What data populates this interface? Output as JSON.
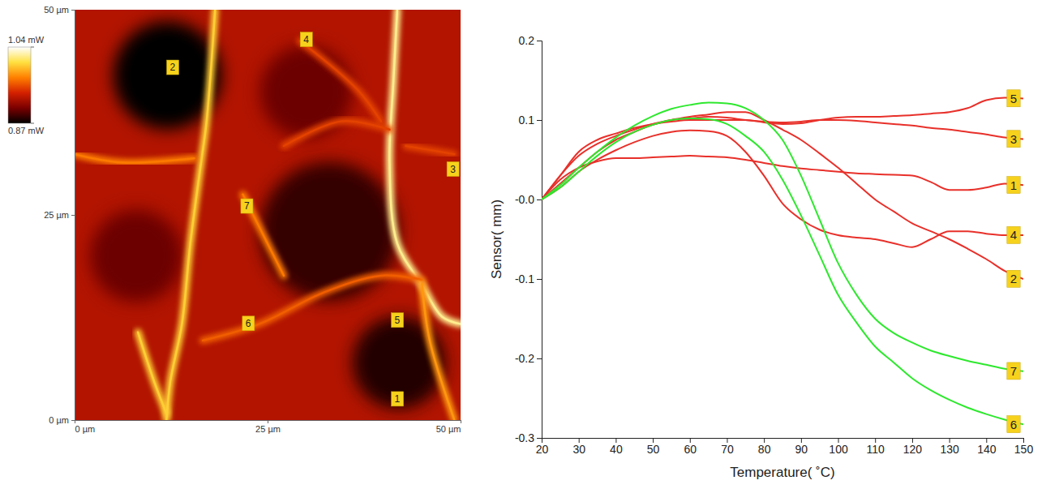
{
  "chart_data": [
    {
      "type": "map",
      "xlim": [
        0,
        50
      ],
      "ylim": [
        0,
        50
      ],
      "xticks": [
        {
          "value": 0,
          "label": "0 µm"
        },
        {
          "value": 25,
          "label": "25 µm"
        },
        {
          "value": 50,
          "label": "50 µm"
        }
      ],
      "yticks": [
        {
          "value": 0,
          "label": "0 µm"
        },
        {
          "value": 25,
          "label": "25 µm"
        },
        {
          "value": 50,
          "label": "50 µm"
        }
      ],
      "colorbar": {
        "range": [
          0.87,
          1.04
        ],
        "ticks": [
          {
            "value": 1.04,
            "label": "1.04 mW"
          },
          {
            "value": 0.87,
            "label": "0.87 mW"
          }
        ]
      },
      "background": 0.925,
      "dark_regions": [
        {
          "x": 12,
          "y": 42,
          "radius": 7,
          "power": 0.87
        },
        {
          "x": 33,
          "y": 23,
          "radius": 9,
          "power": 0.885
        },
        {
          "x": 42,
          "y": 7,
          "radius": 6,
          "power": 0.88
        },
        {
          "x": 8,
          "y": 20,
          "radius": 6,
          "power": 0.9
        },
        {
          "x": 30,
          "y": 40,
          "radius": 6,
          "power": 0.9
        }
      ],
      "ridges": [
        {
          "power": 1.0,
          "x": [
            18.2,
            17.1,
            16.4,
            15.0,
            13.9,
            12.4,
            11.9
          ],
          "y": [
            50,
            36.4,
            31.5,
            21.6,
            11.7,
            4.7,
            0
          ]
        },
        {
          "power": 1.02,
          "x": [
            41.8,
            41.3,
            40.8,
            41.8,
            44.9,
            47.6,
            50
          ],
          "y": [
            50,
            41.3,
            31.4,
            21.5,
            16.6,
            12.6,
            11.7
          ]
        },
        {
          "power": 1.0,
          "x": [
            8.2,
            10.3,
            11.9
          ],
          "y": [
            10.7,
            4.7,
            0.8
          ]
        },
        {
          "power": 0.97,
          "x": [
            0,
            6.1,
            15.5
          ],
          "y": [
            32.4,
            31.4,
            31.9
          ]
        },
        {
          "power": 0.97,
          "x": [
            21.8,
            25,
            27.1
          ],
          "y": [
            27.5,
            21.5,
            17.6
          ]
        },
        {
          "power": 0.96,
          "x": [
            16.6,
            23.9,
            32.4,
            39.7,
            45
          ],
          "y": [
            9.7,
            11.7,
            15.6,
            17.6,
            17.1
          ]
        },
        {
          "power": 0.98,
          "x": [
            45,
            46,
            49.2
          ],
          "y": [
            16.6,
            9.7,
            0
          ]
        },
        {
          "power": 0.95,
          "x": [
            29.2,
            36.6,
            39.7
          ],
          "y": [
            46.2,
            40.3,
            36.4
          ]
        },
        {
          "power": 0.95,
          "x": [
            27.1,
            34.5,
            40.8
          ],
          "y": [
            33.4,
            36.4,
            35.4
          ]
        },
        {
          "power": 0.95,
          "x": [
            42.9,
            49.2
          ],
          "y": [
            33.4,
            32.4
          ]
        }
      ],
      "points": {
        "labels": [
          "1",
          "2",
          "3",
          "4",
          "5",
          "6",
          "7"
        ],
        "x": [
          41.8,
          12.7,
          49.0,
          30.0,
          41.8,
          22.5,
          22.3
        ],
        "y": [
          2.6,
          43.0,
          30.6,
          46.4,
          12.2,
          11.8,
          26.1
        ]
      }
    },
    {
      "type": "line",
      "x_label": "Temperature( ˚C)",
      "y_label": "Sensor( mm)",
      "grid": false,
      "xlim": [
        20,
        150
      ],
      "xticks": [
        20,
        30,
        40,
        50,
        60,
        70,
        80,
        90,
        100,
        110,
        120,
        130,
        140,
        150
      ],
      "ylim": [
        -0.3,
        0.2
      ],
      "yticks": [
        -0.3,
        -0.2,
        -0.1,
        {
          "value": 0,
          "label": "-0.0"
        },
        0.1,
        0.2
      ],
      "x": [
        20,
        25,
        30,
        35,
        40,
        45,
        50,
        55,
        60,
        65,
        70,
        75,
        80,
        85,
        90,
        95,
        100,
        105,
        110,
        115,
        120,
        125,
        130,
        135,
        140,
        145,
        150
      ],
      "series": [
        {
          "name": "1",
          "color": "#e8302a",
          "values": [
            0,
            0.025,
            0.04,
            0.048,
            0.052,
            0.052,
            0.053,
            0.054,
            0.055,
            0.054,
            0.053,
            0.05,
            0.046,
            0.042,
            0.039,
            0.037,
            0.035,
            0.033,
            0.032,
            0.031,
            0.03,
            0.022,
            0.012,
            0.012,
            0.015,
            0.02,
            0.018
          ]
        },
        {
          "name": "2",
          "color": "#e8302a",
          "values": [
            0,
            0.02,
            0.04,
            0.06,
            0.075,
            0.085,
            0.094,
            0.1,
            0.104,
            0.107,
            0.11,
            0.11,
            0.1,
            0.088,
            0.075,
            0.058,
            0.04,
            0.02,
            0.0,
            -0.015,
            -0.03,
            -0.04,
            -0.05,
            -0.062,
            -0.075,
            -0.09,
            -0.1
          ]
        },
        {
          "name": "3",
          "color": "#e8302a",
          "values": [
            0,
            0.03,
            0.055,
            0.07,
            0.08,
            0.088,
            0.095,
            0.1,
            0.102,
            0.104,
            0.103,
            0.1,
            0.098,
            0.097,
            0.098,
            0.1,
            0.1,
            0.099,
            0.097,
            0.095,
            0.093,
            0.09,
            0.088,
            0.085,
            0.082,
            0.078,
            0.076
          ]
        },
        {
          "name": "4",
          "color": "#e8302a",
          "values": [
            0,
            0.015,
            0.035,
            0.05,
            0.062,
            0.072,
            0.08,
            0.085,
            0.087,
            0.086,
            0.08,
            0.06,
            0.03,
            -0.005,
            -0.025,
            -0.038,
            -0.045,
            -0.048,
            -0.05,
            -0.055,
            -0.06,
            -0.05,
            -0.04,
            -0.04,
            -0.043,
            -0.045,
            -0.045
          ]
        },
        {
          "name": "5",
          "color": "#e8302a",
          "values": [
            0,
            0.03,
            0.06,
            0.075,
            0.083,
            0.09,
            0.095,
            0.098,
            0.1,
            0.1,
            0.1,
            0.1,
            0.097,
            0.095,
            0.096,
            0.1,
            0.103,
            0.104,
            0.104,
            0.105,
            0.106,
            0.108,
            0.11,
            0.115,
            0.125,
            0.128,
            0.127
          ]
        },
        {
          "name": "6",
          "color": "#2ee82e",
          "values": [
            0,
            0.015,
            0.035,
            0.055,
            0.072,
            0.085,
            0.094,
            0.1,
            0.102,
            0.101,
            0.095,
            0.08,
            0.06,
            0.025,
            -0.02,
            -0.07,
            -0.12,
            -0.155,
            -0.185,
            -0.205,
            -0.225,
            -0.24,
            -0.252,
            -0.262,
            -0.27,
            -0.277,
            -0.283
          ]
        },
        {
          "name": "7",
          "color": "#2ee82e",
          "values": [
            0,
            0.018,
            0.04,
            0.06,
            0.078,
            0.093,
            0.105,
            0.114,
            0.119,
            0.122,
            0.121,
            0.115,
            0.1,
            0.075,
            0.03,
            -0.025,
            -0.08,
            -0.12,
            -0.15,
            -0.168,
            -0.18,
            -0.19,
            -0.197,
            -0.203,
            -0.208,
            -0.213,
            -0.216
          ]
        }
      ]
    }
  ]
}
